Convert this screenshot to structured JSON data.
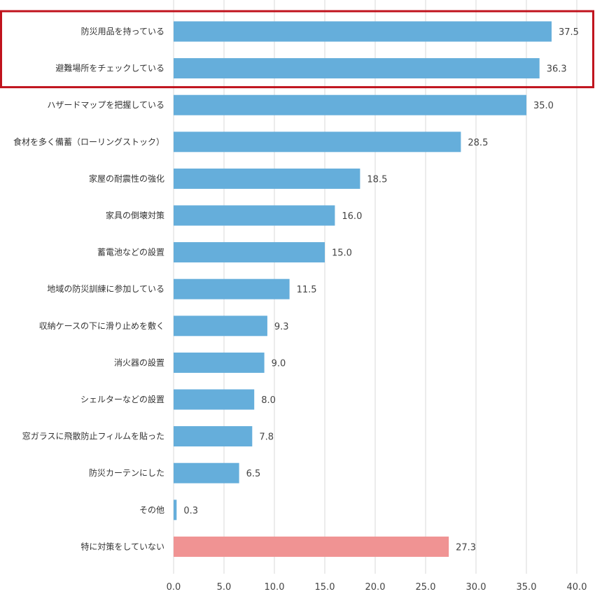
{
  "chart_data": {
    "type": "bar",
    "orientation": "horizontal",
    "categories": [
      "防災用品を持っている",
      "避難場所をチェックしている",
      "ハザードマップを把握している",
      "食材を多く備蓄（ローリングストック）",
      "家屋の耐震性の強化",
      "家具の倒壊対策",
      "蓄電池などの設置",
      "地域の防災訓練に参加している",
      "収納ケースの下に滑り止めを敷く",
      "消火器の設置",
      "シェルターなどの設置",
      "窓ガラスに飛散防止フィルムを貼った",
      "防災カーテンにした",
      "その他",
      "特に対策をしていない"
    ],
    "values": [
      37.5,
      36.3,
      35.0,
      28.5,
      18.5,
      16.0,
      15.0,
      11.5,
      9.3,
      9.0,
      8.0,
      7.8,
      6.5,
      0.3,
      27.3
    ],
    "value_labels": [
      "37.5",
      "36.3",
      "35.0",
      "28.5",
      "18.5",
      "16.0",
      "15.0",
      "11.5",
      "9.3",
      "9.0",
      "8.0",
      "7.8",
      "6.5",
      "0.3",
      "27.3"
    ],
    "xlim": [
      0,
      40
    ],
    "xticks": [
      "0.0",
      "5.0",
      "10.0",
      "15.0",
      "20.0",
      "25.0",
      "30.0",
      "35.0",
      "40.0"
    ],
    "grid": "vertical",
    "bar_color": "#65aedb",
    "highlight_bar_color": "#f09393",
    "highlight_bar_category": "特に対策をしていない",
    "highlight_box_categories": [
      "防災用品を持っている",
      "避難場所をチェックしている"
    ],
    "highlight_box_color": "#c0131d",
    "title": "",
    "xlabel": "",
    "ylabel": ""
  }
}
